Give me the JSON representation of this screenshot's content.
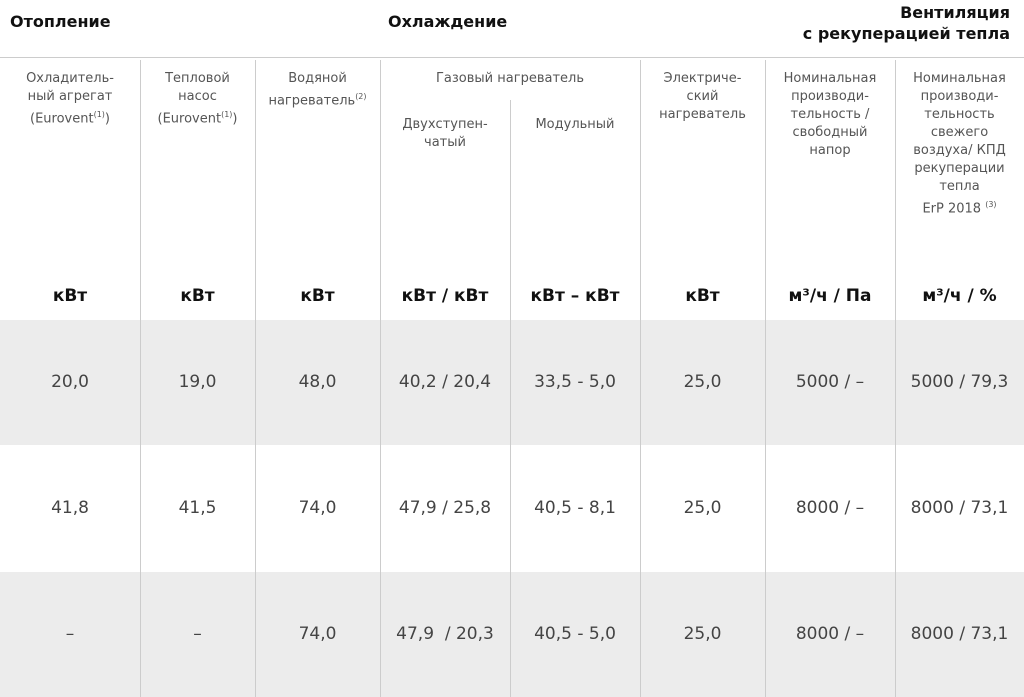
{
  "header": {
    "heating": "Отопление",
    "cooling": "Охлаждение",
    "ventilation": "Вентиляция\nс рекуперацией тепла"
  },
  "gas_heater": "Газовый нагреватель",
  "columns": [
    {
      "label": "Охладитель-\nный агрегат\n(Eurovent",
      "sup": "(1)",
      "label_end": ")",
      "unit": "кВт"
    },
    {
      "label": "Тепловой\nнасос\n(Eurovent",
      "sup": "(1)",
      "label_end": ")",
      "unit": "кВт"
    },
    {
      "label": "Водяной\nнагреватель",
      "sup": "(2)",
      "unit": "кВт"
    },
    {
      "label": "Двухступен-\nчатый",
      "unit": "кВт / кВт"
    },
    {
      "label": "Модульный",
      "unit": "кВт – кВт"
    },
    {
      "label": "Электриче-\nский\nнагреватель",
      "unit": "кВт"
    },
    {
      "label": "Номинальная\nпроизводи-\nтельность /\nсвободный\nнапор",
      "unit": "м³/ч / Па"
    },
    {
      "label": "Номинальная\nпроизводи-\nтельность\nсвежего\nвоздуха/ КПД\nрекуперации\nтепла\nErP 2018 ",
      "sup": "(3)",
      "unit": "м³/ч / %"
    }
  ],
  "rows": [
    [
      "20,0",
      "19,0",
      "48,0",
      "40,2 / 20,4",
      "33,5 - 5,0",
      "25,0",
      "5000 / –",
      "5000 / 79,3"
    ],
    [
      "41,8",
      "41,5",
      "74,0",
      "47,9 / 25,8",
      "40,5 - 8,1",
      "25,0",
      "8000 / –",
      "8000 / 73,1"
    ],
    [
      "–",
      "–",
      "74,0",
      "47,9  / 20,3",
      "40,5 - 5,0",
      "25,0",
      "8000 / –",
      "8000 / 73,1"
    ]
  ]
}
